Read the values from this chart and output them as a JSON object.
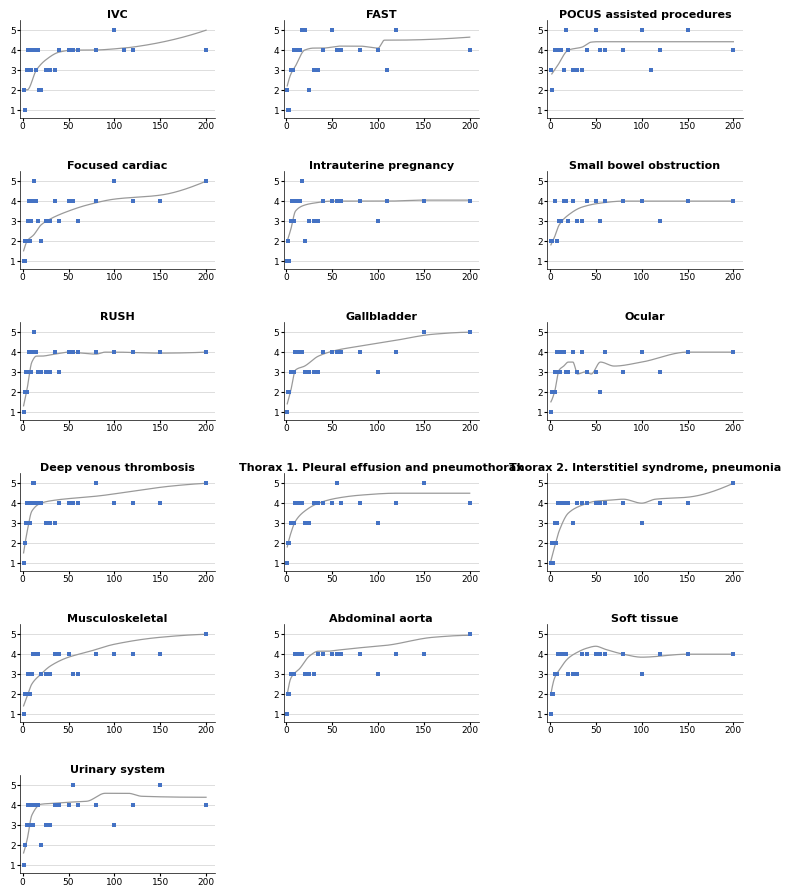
{
  "panels": [
    {
      "title": "IVC",
      "scatter_x": [
        1,
        2,
        3,
        5,
        6,
        7,
        8,
        9,
        10,
        11,
        12,
        13,
        15,
        17,
        18,
        20,
        25,
        30,
        35,
        40,
        50,
        55,
        60,
        80,
        100,
        110,
        120,
        200
      ],
      "scatter_y": [
        2,
        1,
        1,
        3,
        4,
        4,
        4,
        3,
        4,
        4,
        4,
        4,
        3,
        4,
        2,
        2,
        3,
        3,
        3,
        4,
        4,
        4,
        4,
        4,
        5,
        4,
        4,
        4
      ],
      "curve_x": [
        1,
        5,
        15,
        25,
        40,
        55,
        75,
        110,
        120,
        200
      ],
      "curve_y": [
        2.0,
        2.0,
        3.0,
        3.5,
        3.9,
        4.0,
        4.0,
        4.1,
        4.15,
        5.0
      ]
    },
    {
      "title": "FAST",
      "scatter_x": [
        1,
        2,
        3,
        5,
        6,
        7,
        8,
        9,
        10,
        11,
        12,
        15,
        17,
        20,
        25,
        30,
        35,
        40,
        50,
        55,
        60,
        80,
        100,
        110,
        120,
        200
      ],
      "scatter_y": [
        2,
        1,
        1,
        3,
        3,
        3,
        4,
        4,
        4,
        4,
        4,
        4,
        5,
        5,
        2,
        3,
        3,
        4,
        5,
        4,
        4,
        4,
        4,
        3,
        5,
        4
      ],
      "curve_x": [
        1,
        5,
        10,
        20,
        30,
        40,
        50,
        58,
        80,
        100,
        107,
        115,
        200
      ],
      "curve_y": [
        2.2,
        2.8,
        3.2,
        4.0,
        4.1,
        4.1,
        4.15,
        4.2,
        4.2,
        4.1,
        4.5,
        4.5,
        4.65
      ]
    },
    {
      "title": "POCUS assisted procedures",
      "scatter_x": [
        1,
        2,
        5,
        10,
        12,
        15,
        17,
        20,
        25,
        30,
        35,
        40,
        50,
        55,
        60,
        80,
        100,
        110,
        120,
        150,
        200
      ],
      "scatter_y": [
        3,
        2,
        4,
        4,
        4,
        3,
        5,
        4,
        3,
        3,
        3,
        4,
        5,
        4,
        4,
        4,
        5,
        3,
        4,
        5,
        4
      ],
      "curve_x": [
        2,
        8,
        20,
        35,
        45,
        52,
        60,
        80,
        120,
        200
      ],
      "curve_y": [
        2.8,
        3.2,
        4.0,
        4.15,
        4.4,
        4.42,
        4.42,
        4.42,
        4.42,
        4.42
      ]
    },
    {
      "title": "Focused cardiac",
      "scatter_x": [
        1,
        2,
        3,
        5,
        6,
        7,
        8,
        9,
        10,
        11,
        12,
        15,
        17,
        20,
        25,
        30,
        35,
        40,
        50,
        55,
        60,
        80,
        100,
        120,
        150,
        200
      ],
      "scatter_y": [
        1,
        2,
        1,
        2,
        3,
        4,
        2,
        3,
        4,
        4,
        5,
        4,
        3,
        2,
        3,
        3,
        4,
        3,
        4,
        4,
        3,
        4,
        5,
        4,
        4,
        5
      ],
      "curve_x": [
        1,
        5,
        12,
        20,
        30,
        50,
        70,
        100,
        150,
        200
      ],
      "curve_y": [
        1.5,
        2.0,
        2.3,
        2.8,
        3.1,
        3.5,
        3.8,
        4.1,
        4.3,
        5.0
      ]
    },
    {
      "title": "Intrauterine pregnancy",
      "scatter_x": [
        1,
        2,
        3,
        5,
        6,
        7,
        8,
        9,
        10,
        11,
        12,
        15,
        17,
        20,
        25,
        30,
        35,
        40,
        50,
        55,
        60,
        80,
        100,
        110,
        150,
        200
      ],
      "scatter_y": [
        1,
        2,
        1,
        3,
        4,
        3,
        3,
        4,
        4,
        4,
        4,
        4,
        5,
        2,
        3,
        3,
        3,
        4,
        4,
        4,
        4,
        4,
        3,
        4,
        4,
        4
      ],
      "curve_x": [
        1,
        5,
        10,
        20,
        30,
        50,
        80,
        110,
        150,
        200
      ],
      "curve_y": [
        2.0,
        2.6,
        3.5,
        3.8,
        3.9,
        4.0,
        4.0,
        4.0,
        4.05,
        4.05
      ]
    },
    {
      "title": "Small bowel obstruction",
      "scatter_x": [
        1,
        2,
        5,
        8,
        10,
        12,
        15,
        17,
        20,
        25,
        30,
        35,
        40,
        50,
        55,
        60,
        80,
        100,
        120,
        150,
        200
      ],
      "scatter_y": [
        2,
        2,
        4,
        2,
        3,
        3,
        4,
        4,
        3,
        4,
        3,
        3,
        4,
        4,
        3,
        4,
        4,
        4,
        3,
        4,
        4
      ],
      "curve_x": [
        1,
        5,
        10,
        20,
        35,
        55,
        80,
        120,
        200
      ],
      "curve_y": [
        1.8,
        2.2,
        2.8,
        3.3,
        3.7,
        3.9,
        4.0,
        4.0,
        4.0
      ]
    },
    {
      "title": "RUSH",
      "scatter_x": [
        1,
        2,
        3,
        4,
        5,
        6,
        7,
        8,
        9,
        10,
        11,
        12,
        15,
        17,
        20,
        25,
        30,
        35,
        40,
        50,
        55,
        60,
        80,
        100,
        120,
        150,
        200
      ],
      "scatter_y": [
        1,
        2,
        2,
        3,
        2,
        3,
        4,
        4,
        3,
        4,
        4,
        5,
        4,
        3,
        3,
        3,
        3,
        4,
        3,
        4,
        4,
        4,
        4,
        4,
        4,
        4,
        4
      ],
      "curve_x": [
        1,
        5,
        10,
        15,
        20,
        35,
        50,
        65,
        80,
        90,
        100,
        150,
        200
      ],
      "curve_y": [
        1.3,
        2.2,
        3.5,
        3.8,
        3.8,
        3.9,
        4.0,
        3.95,
        3.9,
        4.0,
        4.0,
        3.95,
        4.0
      ]
    },
    {
      "title": "Gallbladder",
      "scatter_x": [
        1,
        2,
        3,
        5,
        6,
        7,
        8,
        9,
        10,
        11,
        12,
        15,
        17,
        20,
        25,
        30,
        35,
        40,
        50,
        55,
        60,
        80,
        100,
        120,
        150,
        200
      ],
      "scatter_y": [
        1,
        2,
        2,
        3,
        3,
        3,
        3,
        4,
        4,
        4,
        4,
        4,
        4,
        3,
        3,
        3,
        3,
        4,
        4,
        4,
        4,
        4,
        3,
        4,
        5,
        5
      ],
      "curve_x": [
        1,
        5,
        10,
        20,
        35,
        55,
        80,
        120,
        160,
        200
      ],
      "curve_y": [
        1.4,
        2.1,
        3.1,
        3.3,
        3.8,
        4.1,
        4.3,
        4.6,
        4.9,
        5.0
      ]
    },
    {
      "title": "Ocular",
      "scatter_x": [
        1,
        2,
        3,
        5,
        6,
        7,
        8,
        9,
        10,
        11,
        12,
        15,
        17,
        20,
        25,
        30,
        35,
        40,
        50,
        55,
        60,
        80,
        100,
        120,
        150,
        200
      ],
      "scatter_y": [
        1,
        2,
        2,
        2,
        3,
        3,
        4,
        3,
        4,
        3,
        4,
        4,
        3,
        3,
        4,
        3,
        4,
        3,
        3,
        2,
        4,
        3,
        4,
        3,
        4,
        4
      ],
      "curve_x": [
        1,
        5,
        10,
        15,
        20,
        25,
        30,
        38,
        45,
        55,
        70,
        100,
        150,
        200
      ],
      "curve_y": [
        1.5,
        2.0,
        3.1,
        3.3,
        3.5,
        3.5,
        2.9,
        3.0,
        2.9,
        3.5,
        3.3,
        3.5,
        4.0,
        4.0
      ]
    },
    {
      "title": "Deep venous thrombosis",
      "scatter_x": [
        1,
        2,
        3,
        4,
        5,
        6,
        7,
        8,
        9,
        10,
        11,
        12,
        15,
        17,
        20,
        25,
        30,
        35,
        40,
        50,
        55,
        60,
        80,
        100,
        120,
        150,
        200
      ],
      "scatter_y": [
        1,
        2,
        2,
        3,
        4,
        4,
        3,
        3,
        4,
        4,
        5,
        5,
        4,
        4,
        4,
        3,
        3,
        3,
        4,
        4,
        4,
        4,
        5,
        4,
        4,
        4,
        5
      ],
      "curve_x": [
        1,
        5,
        10,
        20,
        35,
        55,
        80,
        120,
        160,
        200
      ],
      "curve_y": [
        1.5,
        2.6,
        3.6,
        4.0,
        4.15,
        4.25,
        4.35,
        4.6,
        4.85,
        5.0
      ]
    },
    {
      "title": "Thorax 1. Pleural effusion and pneumothorax",
      "scatter_x": [
        1,
        2,
        3,
        5,
        6,
        7,
        8,
        9,
        10,
        11,
        12,
        15,
        17,
        20,
        25,
        30,
        35,
        40,
        50,
        55,
        60,
        80,
        100,
        120,
        150,
        200
      ],
      "scatter_y": [
        1,
        2,
        2,
        3,
        3,
        3,
        3,
        4,
        4,
        4,
        4,
        4,
        4,
        3,
        3,
        4,
        4,
        4,
        4,
        5,
        4,
        4,
        3,
        4,
        5,
        4
      ],
      "curve_x": [
        1,
        5,
        10,
        20,
        35,
        55,
        80,
        120,
        200
      ],
      "curve_y": [
        1.8,
        2.5,
        3.1,
        3.6,
        4.0,
        4.25,
        4.4,
        4.5,
        4.5
      ]
    },
    {
      "title": "Thorax 2. Interstitiel syndrome, pneumonia",
      "scatter_x": [
        1,
        2,
        3,
        5,
        6,
        7,
        8,
        9,
        10,
        11,
        12,
        15,
        17,
        20,
        25,
        30,
        35,
        40,
        50,
        55,
        60,
        80,
        100,
        120,
        150,
        200
      ],
      "scatter_y": [
        1,
        2,
        1,
        3,
        3,
        2,
        3,
        4,
        4,
        4,
        4,
        4,
        4,
        4,
        3,
        4,
        4,
        4,
        4,
        4,
        4,
        4,
        3,
        4,
        4,
        5
      ],
      "curve_x": [
        1,
        5,
        10,
        20,
        35,
        50,
        65,
        80,
        100,
        115,
        150,
        200
      ],
      "curve_y": [
        1.1,
        1.8,
        2.6,
        3.5,
        3.9,
        4.1,
        4.15,
        4.2,
        4.0,
        4.2,
        4.3,
        5.0
      ]
    },
    {
      "title": "Musculoskeletal",
      "scatter_x": [
        1,
        2,
        3,
        5,
        6,
        7,
        8,
        9,
        10,
        11,
        12,
        15,
        17,
        20,
        25,
        30,
        35,
        40,
        50,
        55,
        60,
        80,
        100,
        120,
        150,
        200
      ],
      "scatter_y": [
        1,
        2,
        2,
        2,
        3,
        3,
        2,
        3,
        3,
        4,
        4,
        4,
        4,
        3,
        3,
        3,
        4,
        4,
        4,
        3,
        3,
        4,
        4,
        4,
        4,
        5
      ],
      "curve_x": [
        1,
        5,
        10,
        20,
        30,
        50,
        70,
        100,
        150,
        200
      ],
      "curve_y": [
        1.4,
        1.9,
        2.5,
        3.0,
        3.4,
        3.85,
        4.1,
        4.5,
        4.85,
        5.0
      ]
    },
    {
      "title": "Abdominal aorta",
      "scatter_x": [
        1,
        2,
        3,
        5,
        6,
        7,
        8,
        9,
        10,
        11,
        12,
        15,
        17,
        20,
        25,
        30,
        35,
        40,
        50,
        55,
        60,
        80,
        100,
        120,
        150,
        200
      ],
      "scatter_y": [
        1,
        2,
        2,
        3,
        3,
        3,
        3,
        4,
        4,
        4,
        4,
        4,
        4,
        3,
        3,
        3,
        4,
        4,
        4,
        4,
        4,
        4,
        3,
        4,
        4,
        5
      ],
      "curve_x": [
        1,
        5,
        15,
        25,
        35,
        45,
        55,
        75,
        110,
        160,
        200
      ],
      "curve_y": [
        2.0,
        2.8,
        3.3,
        3.9,
        4.15,
        4.15,
        4.2,
        4.3,
        4.45,
        4.85,
        4.95
      ]
    },
    {
      "title": "Soft tissue",
      "scatter_x": [
        1,
        2,
        3,
        5,
        6,
        7,
        8,
        9,
        10,
        11,
        12,
        15,
        17,
        20,
        25,
        30,
        35,
        40,
        50,
        55,
        60,
        80,
        100,
        120,
        150,
        200
      ],
      "scatter_y": [
        1,
        2,
        2,
        3,
        3,
        3,
        3,
        4,
        4,
        4,
        4,
        4,
        4,
        3,
        3,
        3,
        4,
        4,
        4,
        4,
        4,
        4,
        3,
        4,
        4,
        4
      ],
      "curve_x": [
        1,
        5,
        10,
        20,
        30,
        40,
        50,
        60,
        80,
        100,
        150,
        200
      ],
      "curve_y": [
        2.0,
        2.8,
        3.2,
        3.8,
        4.1,
        4.3,
        4.4,
        4.25,
        4.0,
        3.85,
        4.0,
        4.0
      ]
    },
    {
      "title": "Urinary system",
      "scatter_x": [
        1,
        2,
        3,
        5,
        6,
        7,
        8,
        9,
        10,
        11,
        12,
        15,
        17,
        20,
        25,
        30,
        35,
        40,
        50,
        55,
        60,
        80,
        100,
        120,
        150,
        200
      ],
      "scatter_y": [
        1,
        2,
        2,
        3,
        4,
        3,
        4,
        4,
        4,
        3,
        4,
        4,
        4,
        2,
        3,
        3,
        4,
        4,
        4,
        5,
        4,
        4,
        3,
        4,
        5,
        4
      ],
      "curve_x": [
        1,
        5,
        10,
        20,
        35,
        50,
        70,
        90,
        115,
        130,
        200
      ],
      "curve_y": [
        1.6,
        2.3,
        3.5,
        4.05,
        4.1,
        4.15,
        4.2,
        4.6,
        4.6,
        4.45,
        4.4
      ]
    }
  ],
  "scatter_color": "#4472C4",
  "curve_color": "#9a9a9a",
  "xlim": [
    -3,
    210
  ],
  "ylim": [
    0.6,
    5.5
  ],
  "xticks": [
    0,
    50,
    100,
    150,
    200
  ],
  "yticks": [
    1,
    2,
    3,
    4,
    5
  ],
  "grid_color": "#d0d0d0",
  "title_fontsize": 8,
  "tick_fontsize": 6.5
}
